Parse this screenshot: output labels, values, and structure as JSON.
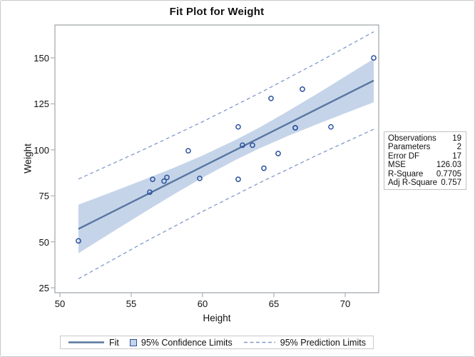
{
  "panel_title": "Fit Plot for Weight",
  "chart_data": {
    "type": "scatter",
    "title": "Fit Plot for Weight",
    "xlabel": "Height",
    "ylabel": "Weight",
    "xlim": [
      49.65,
      72.35
    ],
    "ylim": [
      22.3,
      167.9
    ],
    "xticks": [
      50,
      55,
      60,
      65,
      70
    ],
    "yticks": [
      25,
      50,
      75,
      100,
      125,
      150
    ],
    "grid": false,
    "points": [
      [
        51.3,
        50.5
      ],
      [
        56.3,
        77
      ],
      [
        56.5,
        84
      ],
      [
        57.3,
        83
      ],
      [
        57.5,
        85
      ],
      [
        59,
        99.5
      ],
      [
        59.8,
        84.5
      ],
      [
        62.5,
        84
      ],
      [
        62.5,
        112.5
      ],
      [
        62.8,
        102.5
      ],
      [
        63.5,
        102.5
      ],
      [
        64.3,
        90
      ],
      [
        64.8,
        128
      ],
      [
        65.3,
        98
      ],
      [
        66.5,
        112
      ],
      [
        66.5,
        112
      ],
      [
        67,
        133
      ],
      [
        69,
        112.5
      ],
      [
        72,
        150
      ]
    ],
    "fit_line": {
      "x": [
        51.3,
        72
      ],
      "y": [
        57.0,
        137.7
      ]
    },
    "confidence_band": {
      "x": [
        51.3,
        54.0,
        56.0,
        58.0,
        60.0,
        62.34,
        64.0,
        66.0,
        68.0,
        70.0,
        72.0
      ],
      "lower": [
        43.8,
        56.9,
        66.5,
        75.9,
        84.9,
        94.6,
        100.8,
        107.6,
        113.9,
        119.9,
        125.9
      ],
      "upper": [
        70.2,
        78.1,
        84.1,
        90.3,
        96.9,
        105.5,
        112.2,
        121.1,
        130.3,
        139.9,
        149.5
      ]
    },
    "prediction_limits": {
      "x": [
        51.3,
        56.0,
        60.0,
        64.0,
        68.0,
        72.0
      ],
      "lower": [
        29.9,
        50.1,
        66.5,
        82.1,
        97.0,
        111.2
      ],
      "upper": [
        84.1,
        100.6,
        115.3,
        130.9,
        147.2,
        164.2
      ]
    }
  },
  "stats_box": {
    "rows": [
      {
        "label": "Observations",
        "value": "19"
      },
      {
        "label": "Parameters",
        "value": "2"
      },
      {
        "label": "Error DF",
        "value": "17"
      },
      {
        "label": "MSE",
        "value": "126.03"
      },
      {
        "label": "R-Square",
        "value": "0.7705"
      },
      {
        "label": "Adj R-Square",
        "value": "0.757"
      }
    ]
  },
  "legend": {
    "fit_label": "Fit",
    "confidence_label": "95% Confidence Limits",
    "prediction_label": "95% Prediction Limits"
  },
  "colors": {
    "fit_line": "#56779f",
    "confidence_band": "#c5d4e9",
    "marker_stroke": "#2b529e",
    "prediction_line": "#8099cb",
    "frame": "#a6abae",
    "text": "#111111"
  }
}
